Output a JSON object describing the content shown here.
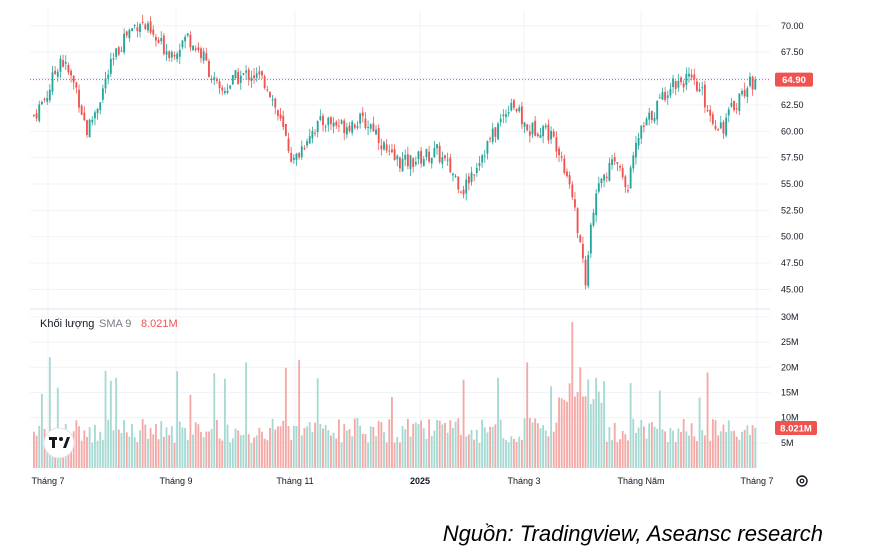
{
  "chart_data": [
    {
      "type": "candlestick",
      "title": "",
      "ylim": [
        44,
        71.5
      ],
      "yticks": [
        "70.00",
        "67.50",
        "65.00",
        "62.50",
        "60.00",
        "57.50",
        "55.00",
        "52.50",
        "50.00",
        "47.50",
        "45.00"
      ],
      "ytick_values": [
        70,
        67.5,
        65,
        62.5,
        60,
        57.5,
        55,
        52.5,
        50,
        47.5,
        45
      ],
      "last_price_label": "64.90",
      "last_price": 64.9,
      "colors": {
        "up": "#26a69a",
        "down": "#ef5350",
        "price_line": "#ef5350"
      },
      "close_path": [
        {
          "x": 0,
          "y": 61.5
        },
        {
          "x": 5,
          "y": 63.5
        },
        {
          "x": 10,
          "y": 67.0
        },
        {
          "x": 16,
          "y": 64.0
        },
        {
          "x": 20,
          "y": 60.0
        },
        {
          "x": 24,
          "y": 62.5
        },
        {
          "x": 28,
          "y": 65.5
        },
        {
          "x": 34,
          "y": 69.0
        },
        {
          "x": 40,
          "y": 70.5
        },
        {
          "x": 46,
          "y": 68.5
        },
        {
          "x": 52,
          "y": 67.5
        },
        {
          "x": 58,
          "y": 69.0
        },
        {
          "x": 64,
          "y": 67.0
        },
        {
          "x": 70,
          "y": 63.5
        },
        {
          "x": 76,
          "y": 65.0
        },
        {
          "x": 82,
          "y": 65.5
        },
        {
          "x": 88,
          "y": 64.5
        },
        {
          "x": 94,
          "y": 60.0
        },
        {
          "x": 98,
          "y": 57.0
        },
        {
          "x": 104,
          "y": 60.0
        },
        {
          "x": 110,
          "y": 61.0
        },
        {
          "x": 116,
          "y": 60.5
        },
        {
          "x": 122,
          "y": 61.0
        },
        {
          "x": 128,
          "y": 60.5
        },
        {
          "x": 134,
          "y": 57.5
        },
        {
          "x": 140,
          "y": 57.0
        },
        {
          "x": 146,
          "y": 57.5
        },
        {
          "x": 152,
          "y": 58.0
        },
        {
          "x": 158,
          "y": 56.0
        },
        {
          "x": 162,
          "y": 54.5
        },
        {
          "x": 168,
          "y": 57.5
        },
        {
          "x": 174,
          "y": 60.0
        },
        {
          "x": 180,
          "y": 63.0
        },
        {
          "x": 186,
          "y": 60.0
        },
        {
          "x": 192,
          "y": 60.5
        },
        {
          "x": 198,
          "y": 58.5
        },
        {
          "x": 202,
          "y": 55.0
        },
        {
          "x": 204,
          "y": 53.0
        },
        {
          "x": 206,
          "y": 49.0
        },
        {
          "x": 208,
          "y": 46.0
        },
        {
          "x": 210,
          "y": 51.0
        },
        {
          "x": 214,
          "y": 56.0
        },
        {
          "x": 220,
          "y": 57.0
        },
        {
          "x": 224,
          "y": 55.0
        },
        {
          "x": 228,
          "y": 59.5
        },
        {
          "x": 234,
          "y": 62.0
        },
        {
          "x": 240,
          "y": 64.5
        },
        {
          "x": 246,
          "y": 65.0
        },
        {
          "x": 252,
          "y": 63.5
        },
        {
          "x": 256,
          "y": 61.0
        },
        {
          "x": 260,
          "y": 60.5
        },
        {
          "x": 264,
          "y": 62.5
        },
        {
          "x": 268,
          "y": 64.0
        },
        {
          "x": 272,
          "y": 64.9
        }
      ]
    },
    {
      "type": "bar",
      "title": "Khối lượng",
      "indicator": "SMA 9",
      "sma_value_label": "8.021M",
      "ylim": [
        0,
        31
      ],
      "yticks": [
        "30M",
        "25M",
        "20M",
        "15M",
        "10M",
        "5M"
      ],
      "ytick_values": [
        30,
        25,
        20,
        15,
        10,
        5
      ],
      "ylabel": "",
      "last_volume_label": "8.021M",
      "notable_volumes_M": {
        "start_spike": 22,
        "sept": 21,
        "nov_spike": 21.5,
        "mar_max": 29,
        "mar_second": 20
      },
      "colors": {
        "up": "#a7d9d3",
        "down": "#f4a9a6"
      }
    }
  ],
  "x_axis": {
    "labels": [
      "Tháng 7",
      "Tháng 9",
      "Tháng 11",
      "2025",
      "Tháng 3",
      "Tháng Năm",
      "Tháng 7"
    ],
    "bold": [
      false,
      false,
      false,
      true,
      false,
      false,
      false
    ]
  },
  "volume_legend": {
    "title": "Khối lượng",
    "indicator": "SMA 9",
    "value": "8.021M"
  },
  "settings_icon": "gear-icon",
  "logo": "tradingview-logo",
  "source": "Nguồn: Tradingview, Aseansc research"
}
